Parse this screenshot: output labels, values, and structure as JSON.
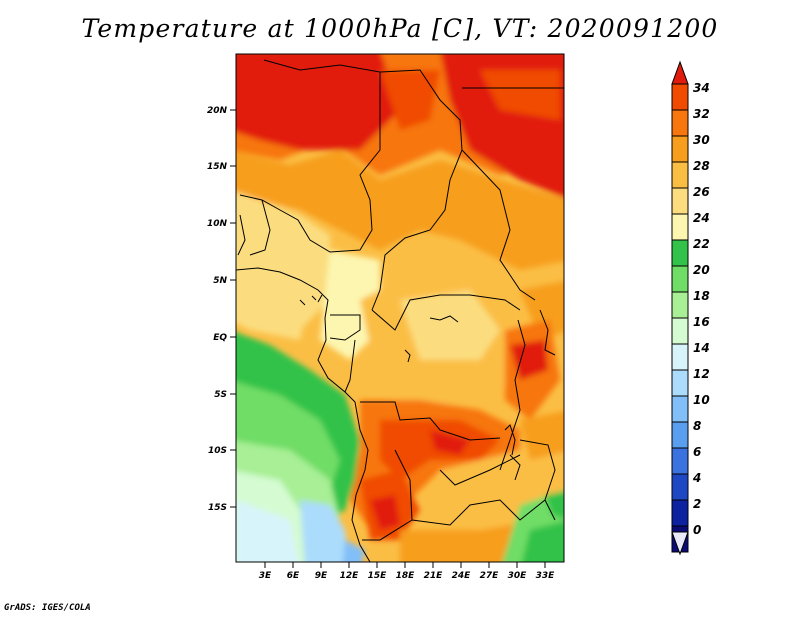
{
  "title": "Temperature at 1000hPa [C], VT: 2020091200",
  "credit": "GrADS: IGES/COLA",
  "map": {
    "lat_labels": [
      "20N",
      "15N",
      "10N",
      "5N",
      "EQ",
      "5S",
      "10S",
      "15S"
    ],
    "lon_labels": [
      "3E",
      "6E",
      "9E",
      "12E",
      "15E",
      "18E",
      "21E",
      "24E",
      "27E",
      "30E",
      "33E"
    ]
  },
  "colorbar": {
    "levels": [
      "34",
      "32",
      "30",
      "28",
      "26",
      "24",
      "22",
      "20",
      "18",
      "16",
      "14",
      "12",
      "10",
      "8",
      "6",
      "4",
      "2",
      "0"
    ],
    "colors": [
      "#e11c0f",
      "#f04b00",
      "#f7760d",
      "#f79e1e",
      "#fbbe45",
      "#fbdd7f",
      "#fdf6b0",
      "#33c24a",
      "#6fdd66",
      "#a8ef95",
      "#d4fbd2",
      "#d8f4fb",
      "#acdcfb",
      "#82bff8",
      "#5a9ef0",
      "#3a72df",
      "#1e47c4",
      "#0c22a0",
      "#0b0b78",
      "#e8e8f8"
    ]
  }
}
